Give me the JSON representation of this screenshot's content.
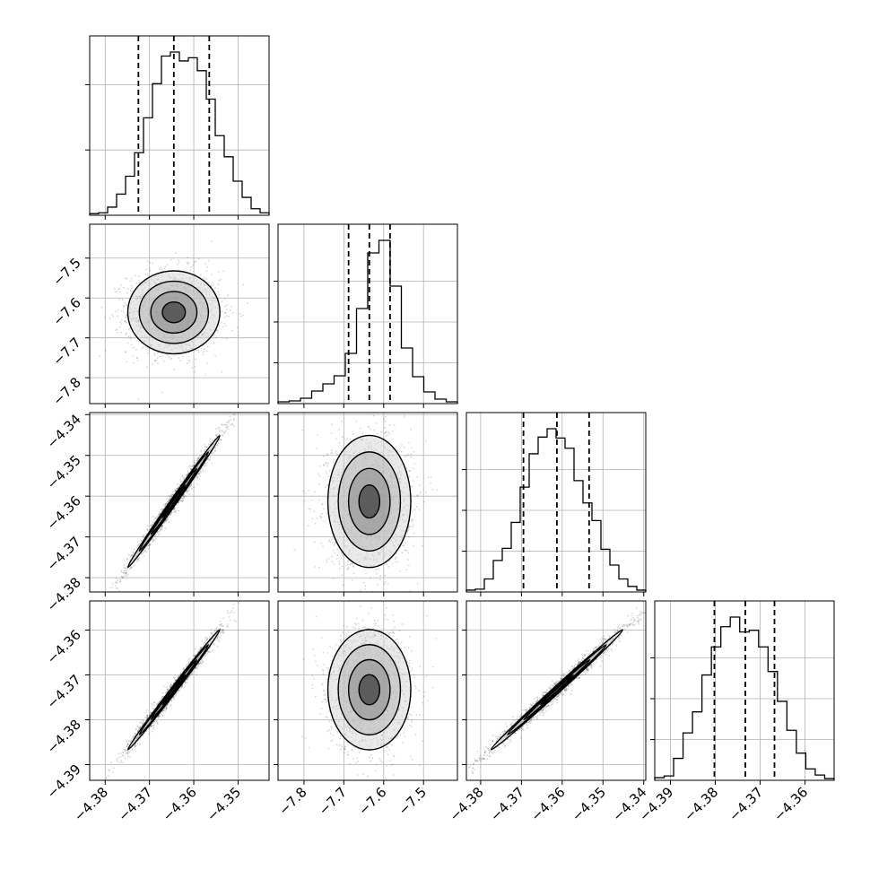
{
  "chart_data": {
    "type": "corner",
    "n_params": 4,
    "grid": true,
    "params": [
      {
        "range": [
          -4.3835,
          -4.343
        ],
        "ticks": [
          -4.38,
          -4.37,
          -4.36,
          -4.35
        ],
        "tick_labels": [
          "−4.38",
          "−4.37",
          "−4.36",
          "−4.35"
        ],
        "quantiles": [
          -4.3725,
          -4.3645,
          -4.3565
        ],
        "mean": -4.3645,
        "std": 0.0052,
        "hist_counts": [
          2,
          3,
          10,
          26,
          48,
          77,
          120,
          162,
          196,
          201,
          190,
          194,
          178,
          143,
          98,
          72,
          42,
          22,
          8,
          3
        ]
      },
      {
        "range": [
          -7.865,
          -7.415
        ],
        "ticks": [
          -7.8,
          -7.7,
          -7.6,
          -7.5
        ],
        "tick_labels": [
          "−7.8",
          "−7.7",
          "−7.6",
          "−7.5"
        ],
        "quantiles": [
          -7.688,
          -7.636,
          -7.584
        ],
        "mean": -7.636,
        "std": 0.052,
        "hist_counts": [
          2,
          3,
          6,
          14,
          22,
          31,
          56,
          106,
          168,
          182,
          131,
          62,
          30,
          13,
          5,
          2
        ]
      },
      {
        "range": [
          -4.3835,
          -4.3395
        ],
        "ticks": [
          -4.38,
          -4.37,
          -4.36,
          -4.35,
          -4.34
        ],
        "tick_labels": [
          "−4.38",
          "−4.37",
          "−4.36",
          "−4.35",
          "−4.34"
        ],
        "left_tick_labels": [
          "−4.34",
          "−4.35",
          "−4.36",
          "−4.37",
          "−4.38"
        ],
        "quantiles": [
          -4.3695,
          -4.3613,
          -4.3534
        ],
        "mean": -4.3613,
        "std": 0.0081,
        "hist_counts": [
          2,
          3,
          14,
          34,
          47,
          75,
          113,
          149,
          167,
          176,
          166,
          155,
          120,
          96,
          77,
          46,
          29,
          14,
          6,
          2
        ]
      },
      {
        "range": [
          -4.3935,
          -4.3535
        ],
        "ticks": [
          -4.39,
          -4.38,
          -4.37,
          -4.36
        ],
        "tick_labels": [
          "−4.39",
          "−4.38",
          "−4.37",
          "−4.36"
        ],
        "quantiles": [
          -4.3802,
          -4.3733,
          -4.3668
        ],
        "mean": -4.3733,
        "std": 0.0067,
        "hist_counts": [
          3,
          5,
          25,
          54,
          78,
          120,
          152,
          175,
          186,
          169,
          171,
          152,
          124,
          90,
          57,
          31,
          13,
          6,
          2
        ]
      }
    ],
    "correlations": [
      [
        1.0,
        0.0,
        0.99,
        0.99
      ],
      [
        0.0,
        1.0,
        0.0,
        0.0
      ],
      [
        0.99,
        0.0,
        1.0,
        0.99
      ],
      [
        0.99,
        0.0,
        0.99,
        1.0
      ]
    ]
  }
}
